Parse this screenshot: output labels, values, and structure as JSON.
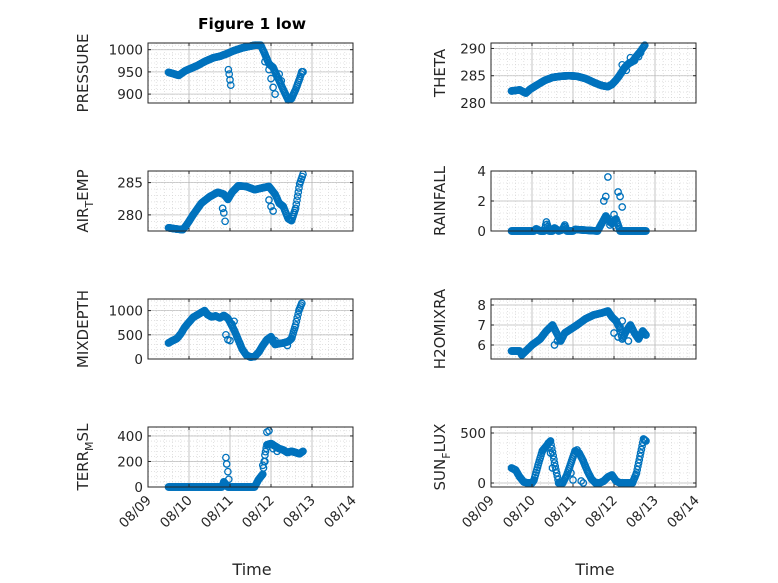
{
  "figure": {
    "title": "Figure 1 low"
  },
  "style": {
    "marker_color": "#0072BD",
    "axis_color": "#262626",
    "grid_color": "#b8b8b8"
  },
  "chart_data": [
    {
      "type": "scatter",
      "ylabel": "PRESSURE",
      "ylim": [
        880,
        1015
      ],
      "yticks": [
        900,
        950,
        1000
      ],
      "xlim": [
        0,
        5
      ],
      "xticks": [
        0,
        1,
        2,
        3,
        4,
        5
      ],
      "xticklabels": [
        "08/09",
        "08/10",
        "08/11",
        "08/12",
        "08/13",
        "08/14"
      ],
      "show_xticklabels": false,
      "knots": [
        [
          0.5,
          949
        ],
        [
          0.65,
          945
        ],
        [
          0.75,
          942
        ],
        [
          0.9,
          952
        ],
        [
          1.0,
          956
        ],
        [
          1.2,
          964
        ],
        [
          1.4,
          974
        ],
        [
          1.6,
          982
        ],
        [
          1.75,
          985
        ],
        [
          1.9,
          990
        ],
        [
          2.1,
          998
        ],
        [
          2.3,
          1004
        ],
        [
          2.5,
          1008
        ],
        [
          2.6,
          1010
        ],
        [
          2.75,
          1010
        ],
        [
          2.85,
          990
        ],
        [
          2.95,
          968
        ],
        [
          3.05,
          960
        ],
        [
          3.15,
          940
        ],
        [
          3.25,
          920
        ],
        [
          3.35,
          900
        ],
        [
          3.42,
          887
        ],
        [
          3.5,
          890
        ],
        [
          3.6,
          910
        ],
        [
          3.7,
          935
        ],
        [
          3.75,
          950
        ],
        [
          3.78,
          950
        ]
      ],
      "extra": [
        [
          1.98,
          945
        ],
        [
          2.0,
          932
        ],
        [
          2.02,
          920
        ],
        [
          1.96,
          955
        ],
        [
          2.85,
          973
        ],
        [
          2.95,
          955
        ],
        [
          3.0,
          935
        ],
        [
          3.05,
          915
        ],
        [
          3.1,
          900
        ],
        [
          3.2,
          945
        ],
        [
          3.25,
          930
        ]
      ]
    },
    {
      "type": "scatter",
      "ylabel": "THETA",
      "ylim": [
        280,
        291
      ],
      "yticks": [
        280,
        285,
        290
      ],
      "xlim": [
        0,
        5
      ],
      "xticks": [
        0,
        1,
        2,
        3,
        4,
        5
      ],
      "xticklabels": [
        "08/09",
        "08/10",
        "08/11",
        "08/12",
        "08/13",
        "08/14"
      ],
      "show_xticklabels": false,
      "knots": [
        [
          0.5,
          282.2
        ],
        [
          0.7,
          282.4
        ],
        [
          0.85,
          281.8
        ],
        [
          0.95,
          282.5
        ],
        [
          1.1,
          283.2
        ],
        [
          1.3,
          284.1
        ],
        [
          1.5,
          284.7
        ],
        [
          1.7,
          284.9
        ],
        [
          1.9,
          285.0
        ],
        [
          2.1,
          284.9
        ],
        [
          2.3,
          284.5
        ],
        [
          2.5,
          283.8
        ],
        [
          2.7,
          283.2
        ],
        [
          2.85,
          283.0
        ],
        [
          2.95,
          283.4
        ],
        [
          3.05,
          284.2
        ],
        [
          3.15,
          285.2
        ],
        [
          3.25,
          286.4
        ],
        [
          3.35,
          287.2
        ],
        [
          3.45,
          287.6
        ],
        [
          3.55,
          288.6
        ],
        [
          3.65,
          289.5
        ],
        [
          3.75,
          290.6
        ]
      ],
      "extra": [
        [
          3.2,
          287.0
        ],
        [
          3.3,
          286.0
        ],
        [
          3.4,
          288.3
        ],
        [
          3.5,
          287.8
        ],
        [
          3.6,
          288.5
        ],
        [
          3.65,
          289.2
        ]
      ]
    },
    {
      "type": "scatter",
      "ylabel": "AIR_TEMP",
      "ylim": [
        277.5,
        286.8
      ],
      "yticks": [
        280,
        285
      ],
      "xlim": [
        0,
        5
      ],
      "xticks": [
        0,
        1,
        2,
        3,
        4,
        5
      ],
      "xticklabels": [
        "08/09",
        "08/10",
        "08/11",
        "08/12",
        "08/13",
        "08/14"
      ],
      "show_xticklabels": false,
      "knots": [
        [
          0.5,
          278.0
        ],
        [
          0.7,
          277.8
        ],
        [
          0.85,
          277.7
        ],
        [
          0.95,
          278.5
        ],
        [
          1.1,
          280.0
        ],
        [
          1.3,
          281.8
        ],
        [
          1.5,
          282.8
        ],
        [
          1.7,
          283.5
        ],
        [
          1.85,
          283.2
        ],
        [
          1.95,
          282.4
        ],
        [
          2.05,
          283.5
        ],
        [
          2.2,
          284.5
        ],
        [
          2.4,
          284.4
        ],
        [
          2.6,
          283.9
        ],
        [
          2.8,
          284.2
        ],
        [
          2.95,
          284.4
        ],
        [
          3.1,
          283.2
        ],
        [
          3.2,
          281.8
        ],
        [
          3.3,
          281.3
        ],
        [
          3.42,
          279.4
        ],
        [
          3.5,
          279.1
        ],
        [
          3.6,
          281.0
        ],
        [
          3.7,
          284.8
        ],
        [
          3.78,
          286.3
        ]
      ],
      "extra": [
        [
          1.82,
          281.0
        ],
        [
          1.85,
          280.3
        ],
        [
          1.88,
          279.0
        ],
        [
          2.95,
          282.3
        ],
        [
          3.0,
          281.3
        ],
        [
          3.05,
          280.6
        ]
      ]
    },
    {
      "type": "scatter",
      "ylabel": "RAINFALL",
      "ylim": [
        0,
        4
      ],
      "yticks": [
        0,
        2,
        4
      ],
      "xlim": [
        0,
        5
      ],
      "xticks": [
        0,
        1,
        2,
        3,
        4,
        5
      ],
      "xticklabels": [
        "08/09",
        "08/10",
        "08/11",
        "08/12",
        "08/13",
        "08/14"
      ],
      "show_xticklabels": false,
      "knots": [
        [
          0.5,
          0.0
        ],
        [
          1.05,
          0.0
        ],
        [
          1.1,
          0.15
        ],
        [
          1.2,
          0.0
        ],
        [
          1.3,
          0.0
        ],
        [
          1.35,
          0.6
        ],
        [
          1.42,
          0.0
        ],
        [
          1.5,
          0.0
        ],
        [
          1.55,
          0.2
        ],
        [
          1.65,
          0.0
        ],
        [
          1.75,
          0.1
        ],
        [
          1.8,
          0.4
        ],
        [
          1.85,
          0.0
        ],
        [
          2.0,
          0.0
        ],
        [
          2.05,
          0.1
        ],
        [
          2.6,
          0.0
        ],
        [
          2.7,
          0.5
        ],
        [
          2.8,
          1.0
        ],
        [
          2.9,
          0.6
        ],
        [
          2.95,
          0.5
        ],
        [
          3.05,
          0.8
        ],
        [
          3.15,
          0.0
        ],
        [
          3.78,
          0.0
        ]
      ],
      "extra": [
        [
          2.75,
          2.0
        ],
        [
          2.8,
          2.3
        ],
        [
          2.85,
          3.6
        ],
        [
          3.0,
          1.1
        ],
        [
          3.1,
          2.6
        ],
        [
          3.15,
          2.3
        ],
        [
          3.2,
          1.6
        ],
        [
          2.9,
          0.4
        ],
        [
          3.05,
          0.2
        ]
      ]
    },
    {
      "type": "scatter",
      "ylabel": "MIXDEPTH",
      "ylim": [
        0,
        1240
      ],
      "yticks": [
        0,
        500,
        1000
      ],
      "xlim": [
        0,
        5
      ],
      "xticks": [
        0,
        1,
        2,
        3,
        4,
        5
      ],
      "xticklabels": [
        "08/09",
        "08/10",
        "08/11",
        "08/12",
        "08/13",
        "08/14"
      ],
      "show_xticklabels": false,
      "knots": [
        [
          0.5,
          330
        ],
        [
          0.6,
          380
        ],
        [
          0.7,
          420
        ],
        [
          0.8,
          520
        ],
        [
          0.9,
          660
        ],
        [
          1.0,
          760
        ],
        [
          1.1,
          860
        ],
        [
          1.2,
          910
        ],
        [
          1.3,
          960
        ],
        [
          1.38,
          1000
        ],
        [
          1.45,
          920
        ],
        [
          1.55,
          870
        ],
        [
          1.65,
          890
        ],
        [
          1.75,
          850
        ],
        [
          1.85,
          900
        ],
        [
          1.95,
          840
        ],
        [
          2.1,
          600
        ],
        [
          2.2,
          400
        ],
        [
          2.3,
          200
        ],
        [
          2.4,
          80
        ],
        [
          2.5,
          40
        ],
        [
          2.6,
          50
        ],
        [
          2.7,
          140
        ],
        [
          2.8,
          280
        ],
        [
          2.9,
          400
        ],
        [
          3.0,
          460
        ],
        [
          3.1,
          300
        ],
        [
          3.2,
          320
        ],
        [
          3.3,
          330
        ],
        [
          3.42,
          360
        ],
        [
          3.5,
          420
        ],
        [
          3.6,
          700
        ],
        [
          3.68,
          1000
        ],
        [
          3.75,
          1150
        ]
      ],
      "extra": [
        [
          1.9,
          500
        ],
        [
          1.95,
          400
        ],
        [
          2.0,
          380
        ],
        [
          2.05,
          720
        ],
        [
          2.1,
          780
        ],
        [
          3.0,
          420
        ],
        [
          3.05,
          350
        ],
        [
          3.1,
          380
        ],
        [
          3.4,
          280
        ]
      ]
    },
    {
      "type": "scatter",
      "ylabel": "H2OMIXRA",
      "ylim": [
        5.3,
        8.3
      ],
      "yticks": [
        6,
        7,
        8
      ],
      "xlim": [
        0,
        5
      ],
      "xticks": [
        0,
        1,
        2,
        3,
        4,
        5
      ],
      "xticklabels": [
        "08/09",
        "08/10",
        "08/11",
        "08/12",
        "08/13",
        "08/14"
      ],
      "show_xticklabels": false,
      "knots": [
        [
          0.5,
          5.7
        ],
        [
          0.7,
          5.7
        ],
        [
          0.75,
          5.5
        ],
        [
          0.85,
          5.7
        ],
        [
          1.0,
          6.0
        ],
        [
          1.2,
          6.3
        ],
        [
          1.35,
          6.7
        ],
        [
          1.5,
          7.0
        ],
        [
          1.6,
          6.6
        ],
        [
          1.7,
          6.2
        ],
        [
          1.8,
          6.6
        ],
        [
          1.95,
          6.8
        ],
        [
          2.1,
          7.0
        ],
        [
          2.3,
          7.3
        ],
        [
          2.5,
          7.5
        ],
        [
          2.7,
          7.6
        ],
        [
          2.85,
          7.7
        ],
        [
          2.95,
          7.4
        ],
        [
          3.05,
          7.2
        ],
        [
          3.15,
          6.8
        ],
        [
          3.2,
          6.3
        ],
        [
          3.3,
          6.7
        ],
        [
          3.4,
          7.0
        ],
        [
          3.5,
          6.6
        ],
        [
          3.6,
          6.3
        ],
        [
          3.7,
          6.7
        ],
        [
          3.78,
          6.5
        ]
      ],
      "extra": [
        [
          1.55,
          6.0
        ],
        [
          1.62,
          6.2
        ],
        [
          3.0,
          6.6
        ],
        [
          3.1,
          6.4
        ],
        [
          3.15,
          6.9
        ],
        [
          3.2,
          7.2
        ],
        [
          3.35,
          6.2
        ]
      ]
    },
    {
      "type": "scatter",
      "ylabel": "TERR_MSL",
      "ylim": [
        0,
        470
      ],
      "yticks": [
        0,
        200,
        400
      ],
      "xlim": [
        0,
        5
      ],
      "xticks": [
        0,
        1,
        2,
        3,
        4,
        5
      ],
      "xticklabels": [
        "08/09",
        "08/10",
        "08/11",
        "08/12",
        "08/13",
        "08/14"
      ],
      "show_xticklabels": true,
      "knots": [
        [
          0.5,
          0
        ],
        [
          1.8,
          0
        ],
        [
          1.85,
          40
        ],
        [
          1.95,
          0
        ],
        [
          2.6,
          0
        ],
        [
          2.7,
          60
        ],
        [
          2.8,
          100
        ],
        [
          2.85,
          250
        ],
        [
          2.9,
          330
        ],
        [
          3.0,
          340
        ],
        [
          3.1,
          320
        ],
        [
          3.2,
          300
        ],
        [
          3.3,
          290
        ],
        [
          3.4,
          270
        ],
        [
          3.5,
          280
        ],
        [
          3.6,
          270
        ],
        [
          3.7,
          260
        ],
        [
          3.78,
          280
        ]
      ],
      "extra": [
        [
          1.9,
          230
        ],
        [
          1.92,
          180
        ],
        [
          1.95,
          120
        ],
        [
          1.97,
          60
        ],
        [
          2.8,
          170
        ],
        [
          2.85,
          200
        ],
        [
          2.9,
          430
        ],
        [
          2.95,
          440
        ],
        [
          3.05,
          300
        ],
        [
          3.15,
          280
        ]
      ]
    },
    {
      "type": "scatter",
      "ylabel": "SUN_FLUX",
      "ylim": [
        -40,
        560
      ],
      "yticks": [
        0,
        500
      ],
      "xlim": [
        0,
        5
      ],
      "xticks": [
        0,
        1,
        2,
        3,
        4,
        5
      ],
      "xticklabels": [
        "08/09",
        "08/10",
        "08/11",
        "08/12",
        "08/13",
        "08/14"
      ],
      "show_xticklabels": true,
      "knots": [
        [
          0.5,
          150
        ],
        [
          0.6,
          130
        ],
        [
          0.7,
          60
        ],
        [
          0.8,
          10
        ],
        [
          0.9,
          0
        ],
        [
          1.0,
          0
        ],
        [
          1.05,
          30
        ],
        [
          1.15,
          180
        ],
        [
          1.25,
          320
        ],
        [
          1.35,
          370
        ],
        [
          1.45,
          420
        ],
        [
          1.55,
          200
        ],
        [
          1.65,
          0
        ],
        [
          1.75,
          0
        ],
        [
          1.85,
          80
        ],
        [
          1.95,
          200
        ],
        [
          2.05,
          320
        ],
        [
          2.15,
          300
        ],
        [
          2.25,
          220
        ],
        [
          2.35,
          120
        ],
        [
          2.45,
          40
        ],
        [
          2.55,
          0
        ],
        [
          2.65,
          0
        ],
        [
          2.75,
          20
        ],
        [
          2.85,
          60
        ],
        [
          2.95,
          80
        ],
        [
          3.05,
          20
        ],
        [
          3.15,
          0
        ],
        [
          3.3,
          0
        ],
        [
          3.45,
          0
        ],
        [
          3.55,
          100
        ],
        [
          3.65,
          300
        ],
        [
          3.72,
          440
        ],
        [
          3.78,
          420
        ]
      ],
      "extra": [
        [
          1.4,
          400
        ],
        [
          1.45,
          300
        ],
        [
          1.5,
          150
        ],
        [
          1.95,
          100
        ],
        [
          2.0,
          30
        ],
        [
          2.1,
          330
        ],
        [
          2.2,
          20
        ],
        [
          2.25,
          0
        ]
      ]
    }
  ],
  "x_axis_label": "Time"
}
